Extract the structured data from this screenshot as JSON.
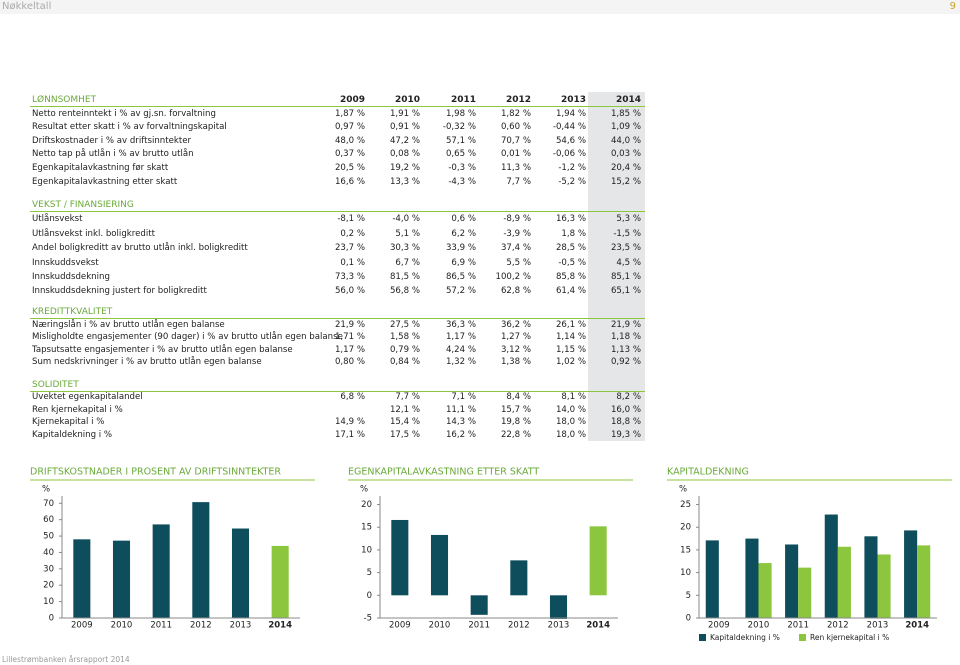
{
  "header": {
    "title": "Nøkkeltall",
    "page": "9"
  },
  "table": {
    "columns": [
      "2009",
      "2010",
      "2011",
      "2012",
      "2013",
      "2014"
    ],
    "sections": [
      {
        "title": "LØNNSOMHET",
        "rows": [
          {
            "label": "Netto renteinntekt i % av gj.sn. forvaltning",
            "values": [
              "1,87 %",
              "1,91 %",
              "1,98 %",
              "1,82 %",
              "1,94 %",
              "1,85 %"
            ]
          },
          {
            "label": "Resultat etter skatt i % av forvaltningskapital",
            "values": [
              "0,97 %",
              "0,91 %",
              "-0,32 %",
              "0,60 %",
              "-0,44 %",
              "1,09 %"
            ]
          },
          {
            "label": "Driftskostnader i % av driftsinntekter",
            "values": [
              "48,0 %",
              "47,2 %",
              "57,1 %",
              "70,7 %",
              "54,6 %",
              "44,0 %"
            ]
          },
          {
            "label": "Netto tap på utlån i % av brutto utlån",
            "values": [
              "0,37 %",
              "0,08 %",
              "0,65 %",
              "0,01 %",
              "-0,06 %",
              "0,03 %"
            ]
          },
          {
            "label": "Egenkapitalavkastning før skatt",
            "values": [
              "20,5 %",
              "19,2 %",
              "-0,3 %",
              "11,3 %",
              "-1,2 %",
              "20,4 %"
            ]
          },
          {
            "label": "Egenkapitalavkastning etter skatt",
            "values": [
              "16,6 %",
              "13,3 %",
              "-4,3 %",
              "7,7 %",
              "-5,2 %",
              "15,2 %"
            ]
          }
        ]
      },
      {
        "title": "VEKST / FINANSIERING",
        "rows": [
          {
            "label": "Utlånsvekst",
            "values": [
              "-8,1 %",
              "-4,0 %",
              "0,6 %",
              "-8,9 %",
              "16,3 %",
              "5,3 %"
            ]
          },
          {
            "label": "Utlånsvekst inkl. boligkreditt",
            "values": [
              "0,2 %",
              "5,1 %",
              "6,2 %",
              "-3,9 %",
              "1,8 %",
              "-1,5 %"
            ]
          },
          {
            "label": "Andel boligkreditt av brutto utlån inkl. boligkreditt",
            "values": [
              "23,7 %",
              "30,3 %",
              "33,9 %",
              "37,4 %",
              "28,5 %",
              "23,5 %"
            ]
          },
          {
            "label": "Innskuddsvekst",
            "values": [
              "0,1 %",
              "6,7 %",
              "6,9 %",
              "5,5 %",
              "-0,5 %",
              "4,5 %"
            ]
          },
          {
            "label": "Innskuddsdekning",
            "values": [
              "73,3 %",
              "81,5 %",
              "86,5 %",
              "100,2 %",
              "85,8 %",
              "85,1 %"
            ]
          },
          {
            "label": "Innskuddsdekning justert for boligkreditt",
            "values": [
              "56,0 %",
              "56,8 %",
              "57,2 %",
              "62,8 %",
              "61,4 %",
              "65,1 %"
            ]
          }
        ]
      },
      {
        "title": "KREDITTKVALITET",
        "rows": [
          {
            "label": "Næringslån i % av brutto utlån egen balanse",
            "values": [
              "21,9 %",
              "27,5 %",
              "36,3 %",
              "36,2 %",
              "26,1 %",
              "21,9 %"
            ]
          },
          {
            "label": "Misligholdte engasjementer (90 dager) i % av brutto utlån egen balanse",
            "values": [
              "1,71 %",
              "1,58 %",
              "1,17 %",
              "1,27 %",
              "1,14 %",
              "1,18 %"
            ]
          },
          {
            "label": "Tapsutsatte engasjementer i % av brutto utlån egen balanse",
            "values": [
              "1,17 %",
              "0,79 %",
              "4,24 %",
              "3,12 %",
              "1,15 %",
              "1,13 %"
            ]
          },
          {
            "label": "Sum nedskrivninger i % av brutto utlån egen balanse",
            "values": [
              "0,80 %",
              "0,84 %",
              "1,32 %",
              "1,38 %",
              "1,02 %",
              "0,92 %"
            ]
          }
        ]
      },
      {
        "title": "SOLIDITET",
        "rows": [
          {
            "label": "Uvektet egenkapitalandel",
            "values": [
              "6,8 %",
              "7,7 %",
              "7,1 %",
              "8,4 %",
              "8,1 %",
              "8,2 %"
            ]
          },
          {
            "label": "Ren kjernekapital i %",
            "values": [
              null,
              "12,1 %",
              "11,1 %",
              "15,7 %",
              "14,0 %",
              "16,0 %"
            ]
          },
          {
            "label": "Kjernekapital i %",
            "values": [
              "14,9 %",
              "15,4 %",
              "14,3 %",
              "19,8 %",
              "18,0 %",
              "18,8 %"
            ]
          },
          {
            "label": "Kapitaldekning i %",
            "values": [
              "17,1 %",
              "17,5 %",
              "16,2 %",
              "22,8 %",
              "18,0 %",
              "19,3 %"
            ]
          }
        ]
      }
    ]
  },
  "chart_data": [
    {
      "type": "bar",
      "title": "DRIFTSKOSTNADER I PROSENT AV DRIFTSINNTEKTER",
      "y_label": "%",
      "categories": [
        "2009",
        "2010",
        "2011",
        "2012",
        "2013",
        "2014"
      ],
      "values": [
        48.0,
        47.2,
        57.1,
        70.7,
        54.6,
        44.0
      ],
      "colors": [
        "#0e4d5c",
        "#0e4d5c",
        "#0e4d5c",
        "#0e4d5c",
        "#0e4d5c",
        "#8cc63e"
      ],
      "ylim": [
        0,
        72
      ],
      "yticks": [
        0,
        10,
        20,
        30,
        40,
        50,
        60,
        70
      ]
    },
    {
      "type": "bar",
      "title": "EGENKAPITALAVKASTNING ETTER SKATT",
      "y_label": "%",
      "categories": [
        "2009",
        "2010",
        "2011",
        "2012",
        "2013",
        "2014"
      ],
      "values": [
        16.6,
        13.3,
        -4.3,
        7.7,
        -5.2,
        15.2
      ],
      "colors": [
        "#0e4d5c",
        "#0e4d5c",
        "#0e4d5c",
        "#0e4d5c",
        "#0e4d5c",
        "#8cc63e"
      ],
      "ylim": [
        -5,
        21
      ],
      "yticks": [
        -5,
        0,
        5,
        10,
        15,
        20
      ]
    },
    {
      "type": "bar",
      "title": "KAPITALDEKNING",
      "y_label": "%",
      "categories": [
        "2009",
        "2010",
        "2011",
        "2012",
        "2013",
        "2014"
      ],
      "series": [
        {
          "name": "Kapitaldekning i %",
          "color": "#0e4d5c",
          "values": [
            17.1,
            17.5,
            16.2,
            22.8,
            18.0,
            19.3
          ]
        },
        {
          "name": "Ren kjernekapital i %",
          "color": "#8cc63e",
          "values": [
            null,
            12.1,
            11.1,
            15.7,
            14.0,
            16.0
          ]
        }
      ],
      "ylim": [
        0,
        26
      ],
      "yticks": [
        0,
        5,
        10,
        15,
        20,
        25
      ]
    }
  ],
  "footer": "Lillestrømbanken årsrapport 2014"
}
